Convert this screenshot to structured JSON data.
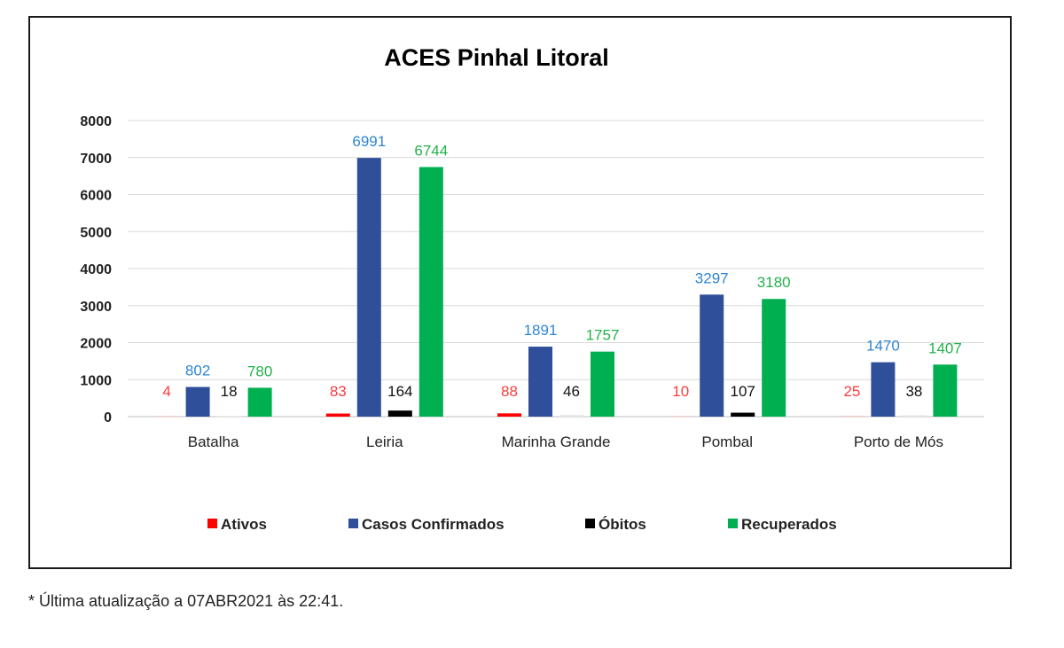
{
  "chart_data": {
    "type": "bar",
    "title": "ACES Pinhal Litoral",
    "categories": [
      "Batalha",
      "Leiria",
      "Marinha Grande",
      "Pombal",
      "Porto de Mós"
    ],
    "ylim": [
      0,
      8000
    ],
    "yticks": [
      0,
      1000,
      2000,
      3000,
      4000,
      5000,
      6000,
      7000,
      8000
    ],
    "grid": true,
    "legend_position": "bottom",
    "series": [
      {
        "name": "Ativos",
        "values": [
          4,
          83,
          88,
          10,
          25
        ],
        "color": "#ff0000"
      },
      {
        "name": "Casos Confirmados",
        "values": [
          802,
          6991,
          1891,
          3297,
          1470
        ],
        "color": "#2f4f9a"
      },
      {
        "name": "Óbitos",
        "values": [
          18,
          164,
          46,
          107,
          38
        ],
        "color": "#000000"
      },
      {
        "name": "Recuperados",
        "values": [
          780,
          6744,
          1757,
          3180,
          1407
        ],
        "color": "#00b050"
      }
    ],
    "data_label_colors": [
      "#ff3b3b",
      "#2e86d4",
      "#111111",
      "#22b14c"
    ]
  },
  "footnote": "* Última atualização a 07ABR2021 às 22:41."
}
